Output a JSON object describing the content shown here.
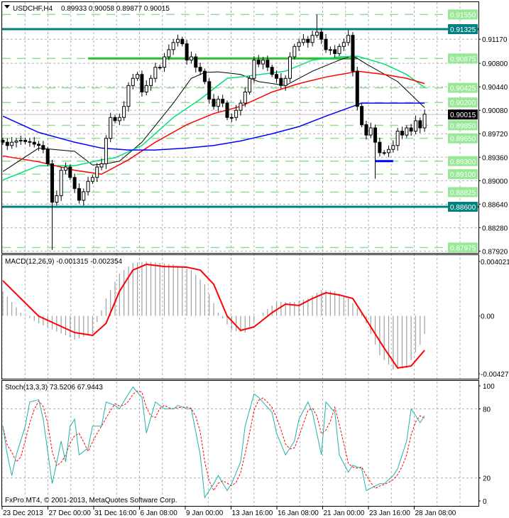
{
  "header": {
    "symbol": "USDCHF,H4",
    "ohlc": "0.89933 0.90058 0.89877 0.90015"
  },
  "macd_label": "MACD(12,26,9) -0.001315 -0.002354",
  "stoch_label": "Stoch(13,3,3) 73.5206 67.9443",
  "copyright": "FxPro MT4, © 2001-2013, MetaQuotes Software Corp.",
  "colors": {
    "level_box": "#98e898",
    "key_level": "#008080",
    "ma_black": "#000000",
    "ma_spring": "#00e07a",
    "ma_red": "#ff0000",
    "ma_blue": "#0000ff",
    "stoch_main": "#20b2aa",
    "stoch_signal": "#ff0000",
    "macd_hist": "#a0a0a0",
    "macd_signal": "#ff0000",
    "support_segment": "#2ebd2e",
    "low_segment": "#0000ff"
  },
  "chart_data": [
    {
      "type": "candlestick",
      "symbol": "USDCHF",
      "timeframe": "H4",
      "ylim": [
        0.879,
        0.9165
      ],
      "closes": [
        0.8959,
        0.8954,
        0.8959,
        0.8961,
        0.8962,
        0.896,
        0.8959,
        0.8956,
        0.8954,
        0.8948,
        0.8926,
        0.8867,
        0.8877,
        0.8916,
        0.8921,
        0.8905,
        0.8888,
        0.887,
        0.8883,
        0.8899,
        0.8905,
        0.8921,
        0.8926,
        0.8965,
        0.8997,
        0.8992,
        0.8997,
        0.9014,
        0.9046,
        0.9057,
        0.9063,
        0.9036,
        0.9046,
        0.9057,
        0.9074,
        0.9074,
        0.909,
        0.9101,
        0.9112,
        0.9117,
        0.911,
        0.9085,
        0.909,
        0.9074,
        0.9068,
        0.9052,
        0.9025,
        0.9014,
        0.9025,
        0.9019,
        0.8997,
        0.8997,
        0.9008,
        0.9019,
        0.9036,
        0.9057,
        0.9085,
        0.9079,
        0.9085,
        0.9074,
        0.9063,
        0.9057,
        0.9046,
        0.9057,
        0.909,
        0.9106,
        0.9112,
        0.9117,
        0.9112,
        0.9123,
        0.9128,
        0.9117,
        0.9101,
        0.9101,
        0.9095,
        0.9106,
        0.9112,
        0.9123,
        0.9068,
        0.9014,
        0.8986,
        0.897,
        0.8981,
        0.8959,
        0.8943,
        0.8943,
        0.8948,
        0.8954,
        0.8976,
        0.897,
        0.8981,
        0.8976,
        0.8992,
        0.8981,
        0.9002
      ],
      "wick_extremes": [
        {
          "bar": 11,
          "low": 0.8794
        },
        {
          "bar": 70,
          "high": 0.9155
        },
        {
          "bar": 83,
          "low": 0.8903
        }
      ],
      "moving_averages": [
        {
          "color": "#000000",
          "points": [
            [
              0,
              0.8914
            ],
            [
              8,
              0.895
            ],
            [
              16,
              0.8945
            ],
            [
              20,
              0.8924
            ],
            [
              23,
              0.8926
            ],
            [
              26,
              0.893
            ],
            [
              31,
              0.8959
            ],
            [
              38,
              0.9019
            ],
            [
              42,
              0.9057
            ],
            [
              45,
              0.9066
            ],
            [
              48,
              0.9067
            ],
            [
              53,
              0.9063
            ],
            [
              57,
              0.9052
            ],
            [
              63,
              0.9046
            ],
            [
              69,
              0.9068
            ],
            [
              75,
              0.9085
            ],
            [
              78,
              0.9092
            ],
            [
              81,
              0.9079
            ],
            [
              88,
              0.9052
            ],
            [
              94,
              0.9012
            ]
          ]
        },
        {
          "color": "#00e07a",
          "points": [
            [
              0,
              0.8901
            ],
            [
              8,
              0.8923
            ],
            [
              16,
              0.8923
            ],
            [
              22,
              0.8932
            ],
            [
              25,
              0.8935
            ],
            [
              31,
              0.8954
            ],
            [
              38,
              0.8997
            ],
            [
              44,
              0.9025
            ],
            [
              50,
              0.9057
            ],
            [
              54,
              0.906
            ],
            [
              63,
              0.9068
            ],
            [
              69,
              0.9085
            ],
            [
              75,
              0.909
            ],
            [
              79,
              0.9091
            ],
            [
              85,
              0.9079
            ],
            [
              90,
              0.9063
            ],
            [
              94,
              0.9043
            ]
          ]
        },
        {
          "color": "#ff0000",
          "points": [
            [
              0,
              0.8938
            ],
            [
              8,
              0.8929
            ],
            [
              16,
              0.8916
            ],
            [
              22,
              0.891
            ],
            [
              28,
              0.8932
            ],
            [
              34,
              0.8959
            ],
            [
              41,
              0.8986
            ],
            [
              47,
              0.9003
            ],
            [
              53,
              0.9014
            ],
            [
              60,
              0.9036
            ],
            [
              66,
              0.9049
            ],
            [
              72,
              0.9059
            ],
            [
              77,
              0.9065
            ],
            [
              79,
              0.9068
            ],
            [
              85,
              0.9063
            ],
            [
              90,
              0.9057
            ],
            [
              94,
              0.9049
            ]
          ]
        },
        {
          "color": "#0000ff",
          "points": [
            [
              0,
              0.8999
            ],
            [
              8,
              0.8974
            ],
            [
              16,
              0.8959
            ],
            [
              22,
              0.895
            ],
            [
              28,
              0.8947
            ],
            [
              34,
              0.8947
            ],
            [
              41,
              0.895
            ],
            [
              47,
              0.8954
            ],
            [
              53,
              0.8961
            ],
            [
              60,
              0.8972
            ],
            [
              66,
              0.8983
            ],
            [
              72,
              0.8999
            ],
            [
              78,
              0.9014
            ],
            [
              80,
              0.9019
            ],
            [
              85,
              0.9019
            ],
            [
              94,
              0.9019
            ]
          ]
        }
      ],
      "key_levels": [
        0.91325,
        0.886
      ],
      "dashed_levels": [
        0.9155,
        0.90875,
        0.90425,
        0.902,
        0.8985,
        0.8965,
        0.893,
        0.891,
        0.88825,
        0.87975
      ],
      "segments": [
        {
          "price": 0.90875,
          "from_bar": 19,
          "to_bar": 79,
          "color": "#2ebd2e"
        },
        {
          "price": 0.893,
          "from_bar": 83,
          "to_bar": 87,
          "color": "#0000ff"
        }
      ],
      "current_price": "0.90015",
      "level_labels": [
        "0.91550",
        "0.91325",
        "0.90875",
        "0.90425",
        "0.90200",
        "0.89850",
        "0.89650",
        "0.89300",
        "0.89100",
        "0.88825",
        "0.88600",
        "0.87975"
      ],
      "tick_labels": [
        "0.91170",
        "0.90800",
        "0.90440",
        "0.90080",
        "0.89720",
        "0.89360",
        "0.89000",
        "0.88640",
        "0.88280",
        "0.87920"
      ],
      "x_tick_labels": [
        "23 Dec 2013",
        "27 Dec 00:00",
        "31 Dec 16:00",
        "6 Jan 08:00",
        "9 Jan 00:00",
        "13 Jan 16:00",
        "16 Jan 08:00",
        "21 Jan 00:00",
        "23 Jan 16:00",
        "28 Jan 08:00"
      ]
    },
    {
      "type": "bar",
      "name": "MACD(12,26,9)",
      "ylim": [
        -0.004276,
        0.004021
      ],
      "tick_labels": [
        "0.004021",
        "0.00",
        "-0.004276"
      ],
      "histogram_points": [
        [
          0,
          0.00182
        ],
        [
          4,
          0.00024
        ],
        [
          8,
          -0.00055
        ],
        [
          16,
          -0.00175
        ],
        [
          20,
          -0.00133
        ],
        [
          23,
          0.00129
        ],
        [
          26,
          0.00313
        ],
        [
          29,
          0.00392
        ],
        [
          32,
          0.00402
        ],
        [
          38,
          0.00381
        ],
        [
          42,
          0.00339
        ],
        [
          45,
          0.00234
        ],
        [
          48,
          0.00024
        ],
        [
          51,
          -0.00107
        ],
        [
          54,
          -0.00123
        ],
        [
          57,
          -2e-05
        ],
        [
          61,
          0.00103
        ],
        [
          65,
          0.00103
        ],
        [
          68,
          0.00129
        ],
        [
          71,
          0.00192
        ],
        [
          74,
          0.00182
        ],
        [
          77,
          0.00129
        ],
        [
          80,
          0.00024
        ],
        [
          84,
          -0.00291
        ],
        [
          87,
          -0.00396
        ],
        [
          90,
          -0.00385
        ],
        [
          93,
          -0.00212
        ],
        [
          94,
          -0.00133
        ]
      ],
      "signal_points": [
        [
          0,
          0.0026
        ],
        [
          4,
          0.00129
        ],
        [
          8,
          -2e-05
        ],
        [
          16,
          -0.00123
        ],
        [
          20,
          -0.00144
        ],
        [
          23,
          -0.00055
        ],
        [
          26,
          0.00182
        ],
        [
          29,
          0.00339
        ],
        [
          32,
          0.00381
        ],
        [
          36,
          0.00365
        ],
        [
          41,
          0.0036
        ],
        [
          44,
          0.00339
        ],
        [
          47,
          0.00234
        ],
        [
          50,
          -2e-05
        ],
        [
          53,
          -0.00107
        ],
        [
          56,
          -0.00081
        ],
        [
          60,
          0.00024
        ],
        [
          63,
          0.00087
        ],
        [
          66,
          0.00077
        ],
        [
          69,
          0.00129
        ],
        [
          72,
          0.00171
        ],
        [
          75,
          0.00155
        ],
        [
          78,
          0.00129
        ],
        [
          81,
          -0.00028
        ],
        [
          85,
          -0.00238
        ],
        [
          88,
          -0.00385
        ],
        [
          91,
          -0.0037
        ],
        [
          94,
          -0.00254
        ]
      ]
    },
    {
      "type": "line",
      "name": "Stoch(13,3,3)",
      "ylim": [
        0,
        100
      ],
      "tick_labels": [
        "100",
        "80",
        "20",
        "0"
      ],
      "levels": [
        80,
        20
      ],
      "main_points": [
        [
          0,
          65
        ],
        [
          1,
          40
        ],
        [
          2,
          22
        ],
        [
          3,
          40
        ],
        [
          5,
          65
        ],
        [
          6,
          86
        ],
        [
          8,
          88
        ],
        [
          9,
          71
        ],
        [
          11,
          15
        ],
        [
          13,
          52
        ],
        [
          14,
          34
        ],
        [
          15,
          65
        ],
        [
          16,
          71
        ],
        [
          17,
          40
        ],
        [
          19,
          46
        ],
        [
          20,
          65
        ],
        [
          22,
          65
        ],
        [
          23,
          86
        ],
        [
          25,
          83
        ],
        [
          26,
          80
        ],
        [
          28,
          93
        ],
        [
          29,
          99
        ],
        [
          31,
          90
        ],
        [
          32,
          59
        ],
        [
          34,
          86
        ],
        [
          36,
          80
        ],
        [
          38,
          80
        ],
        [
          39,
          83
        ],
        [
          41,
          80
        ],
        [
          42,
          80
        ],
        [
          44,
          40
        ],
        [
          45,
          3
        ],
        [
          47,
          15
        ],
        [
          48,
          22
        ],
        [
          50,
          9
        ],
        [
          51,
          15
        ],
        [
          53,
          34
        ],
        [
          54,
          65
        ],
        [
          56,
          93
        ],
        [
          57,
          90
        ],
        [
          60,
          77
        ],
        [
          61,
          59
        ],
        [
          63,
          40
        ],
        [
          65,
          52
        ],
        [
          66,
          71
        ],
        [
          68,
          86
        ],
        [
          69,
          77
        ],
        [
          71,
          40
        ],
        [
          72,
          86
        ],
        [
          74,
          77
        ],
        [
          75,
          40
        ],
        [
          77,
          25
        ],
        [
          78,
          31
        ],
        [
          80,
          28
        ],
        [
          81,
          9
        ],
        [
          84,
          15
        ],
        [
          85,
          15
        ],
        [
          87,
          22
        ],
        [
          88,
          28
        ],
        [
          90,
          52
        ],
        [
          91,
          80
        ],
        [
          93,
          68
        ],
        [
          94,
          74
        ]
      ]
    }
  ]
}
